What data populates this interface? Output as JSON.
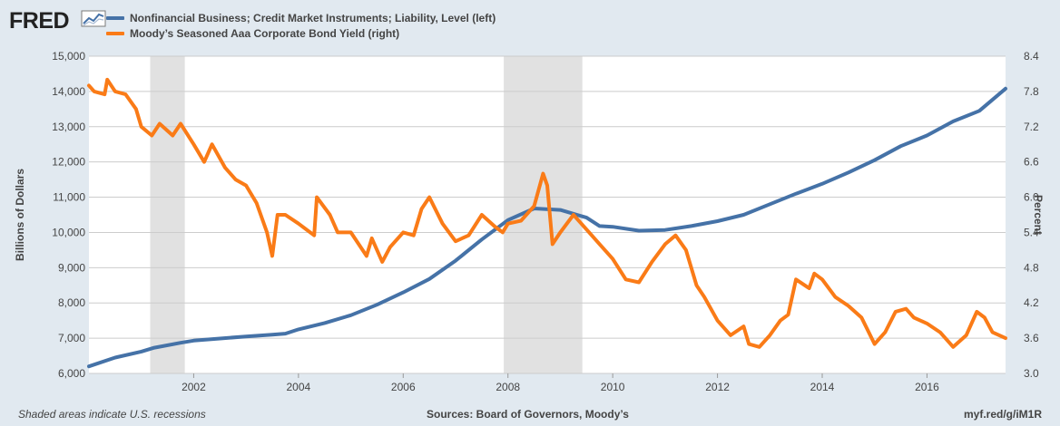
{
  "brand": {
    "name": "FRED"
  },
  "colors": {
    "background": "#e1e9f0",
    "plot_bg": "#ffffff",
    "grid": "#cccccc",
    "recession": "#e1e1e1",
    "series_left": "#4572a7",
    "series_right": "#fa7b17"
  },
  "footer": {
    "left": "Shaded areas indicate U.S. recessions",
    "center": "Sources: Board of Governors, Moody’s",
    "right": "myf.red/g/iM1R"
  },
  "chart_data": {
    "type": "line",
    "legend_position": "top-left",
    "grid": true,
    "x_range": [
      2000,
      2017.5
    ],
    "x_ticks": [
      "2002",
      "2004",
      "2006",
      "2008",
      "2010",
      "2012",
      "2014",
      "2016"
    ],
    "left_axis": {
      "label": "Billions of Dollars",
      "range": [
        6000,
        15000
      ],
      "ticks": [
        "6,000",
        "7,000",
        "8,000",
        "9,000",
        "10,000",
        "11,000",
        "12,000",
        "13,000",
        "14,000",
        "15,000"
      ]
    },
    "right_axis": {
      "label": "Percent",
      "range": [
        3.0,
        8.4
      ],
      "ticks": [
        "3.0",
        "3.6",
        "4.2",
        "4.8",
        "5.4",
        "6.0",
        "6.6",
        "7.2",
        "7.8",
        "8.4"
      ]
    },
    "recessions": [
      [
        2001.17,
        2001.83
      ],
      [
        2007.92,
        2009.42
      ]
    ],
    "series": [
      {
        "name": "Nonfinancial Business; Credit Market Instruments; Liability, Level (left)",
        "axis": "left",
        "x": [
          2000.0,
          2000.5,
          2001.0,
          2001.25,
          2001.75,
          2002.0,
          2002.5,
          2003.0,
          2003.5,
          2003.75,
          2004.0,
          2004.5,
          2005.0,
          2005.5,
          2006.0,
          2006.5,
          2007.0,
          2007.5,
          2008.0,
          2008.5,
          2009.0,
          2009.5,
          2009.75,
          2010.0,
          2010.5,
          2011.0,
          2011.5,
          2012.0,
          2012.5,
          2013.0,
          2013.5,
          2014.0,
          2014.5,
          2015.0,
          2015.5,
          2016.0,
          2016.5,
          2017.0,
          2017.5
        ],
        "y": [
          6200,
          6450,
          6620,
          6730,
          6870,
          6930,
          6990,
          7050,
          7100,
          7130,
          7250,
          7430,
          7650,
          7950,
          8300,
          8680,
          9200,
          9800,
          10350,
          10680,
          10640,
          10420,
          10180,
          10160,
          10050,
          10070,
          10180,
          10320,
          10500,
          10800,
          11100,
          11380,
          11700,
          12050,
          12450,
          12750,
          13150,
          13450,
          14080
        ]
      },
      {
        "name": "Moody’s Seasoned Aaa Corporate Bond Yield (right)",
        "axis": "right",
        "x": [
          2000.0,
          2000.1,
          2000.3,
          2000.35,
          2000.5,
          2000.7,
          2000.9,
          2001.0,
          2001.2,
          2001.35,
          2001.6,
          2001.75,
          2002.0,
          2002.2,
          2002.35,
          2002.6,
          2002.8,
          2003.0,
          2003.2,
          2003.4,
          2003.5,
          2003.6,
          2003.75,
          2004.0,
          2004.3,
          2004.35,
          2004.6,
          2004.75,
          2005.0,
          2005.3,
          2005.4,
          2005.6,
          2005.75,
          2006.0,
          2006.2,
          2006.35,
          2006.5,
          2006.75,
          2007.0,
          2007.25,
          2007.5,
          2007.75,
          2007.9,
          2008.0,
          2008.25,
          2008.5,
          2008.67,
          2008.75,
          2008.85,
          2009.0,
          2009.25,
          2009.5,
          2009.75,
          2010.0,
          2010.25,
          2010.5,
          2010.75,
          2011.0,
          2011.2,
          2011.4,
          2011.6,
          2011.75,
          2012.0,
          2012.25,
          2012.5,
          2012.6,
          2012.8,
          2013.0,
          2013.2,
          2013.35,
          2013.5,
          2013.75,
          2013.85,
          2014.0,
          2014.25,
          2014.5,
          2014.75,
          2015.0,
          2015.2,
          2015.4,
          2015.6,
          2015.75,
          2016.0,
          2016.25,
          2016.5,
          2016.75,
          2016.95,
          2017.1,
          2017.25,
          2017.5
        ],
        "y": [
          7.9,
          7.8,
          7.75,
          8.0,
          7.8,
          7.75,
          7.5,
          7.2,
          7.05,
          7.25,
          7.05,
          7.25,
          6.9,
          6.6,
          6.9,
          6.5,
          6.3,
          6.2,
          5.9,
          5.4,
          5.0,
          5.7,
          5.7,
          5.55,
          5.35,
          6.0,
          5.7,
          5.4,
          5.4,
          5.0,
          5.3,
          4.9,
          5.15,
          5.4,
          5.35,
          5.8,
          6.0,
          5.55,
          5.25,
          5.35,
          5.7,
          5.5,
          5.4,
          5.55,
          5.6,
          5.85,
          6.4,
          6.2,
          5.2,
          5.4,
          5.7,
          5.45,
          5.2,
          4.95,
          4.6,
          4.55,
          4.9,
          5.2,
          5.35,
          5.1,
          4.5,
          4.3,
          3.9,
          3.65,
          3.8,
          3.5,
          3.45,
          3.65,
          3.9,
          4.0,
          4.6,
          4.45,
          4.7,
          4.6,
          4.3,
          4.15,
          3.95,
          3.5,
          3.7,
          4.05,
          4.1,
          3.95,
          3.85,
          3.7,
          3.45,
          3.65,
          4.05,
          3.95,
          3.7,
          3.6
        ]
      }
    ]
  }
}
